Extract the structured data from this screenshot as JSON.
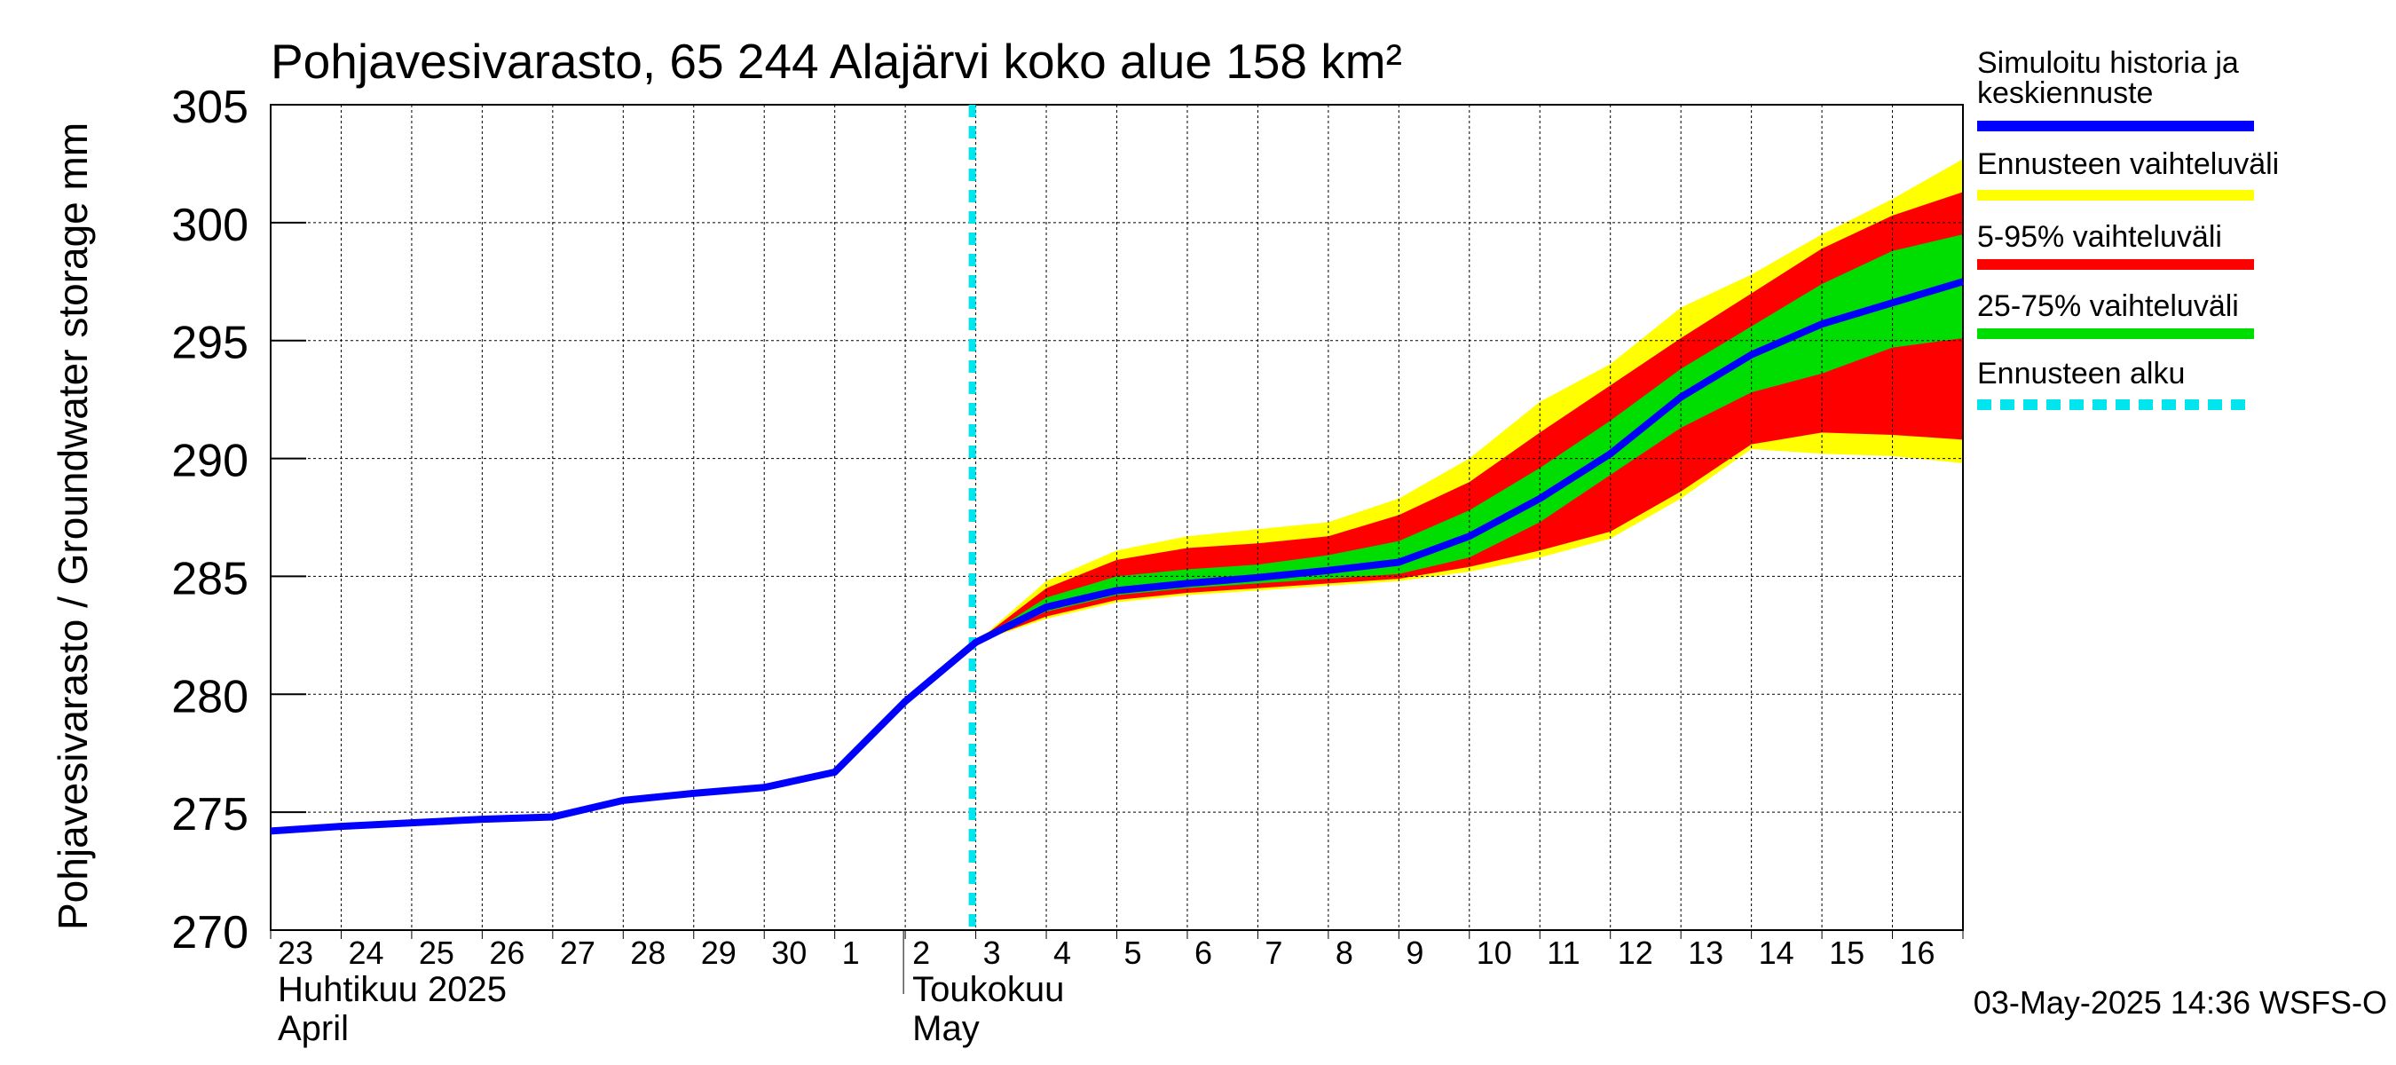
{
  "chart_data": {
    "type": "area",
    "title": "Pohjavesivarasto, 65 244 Alajärvi koko alue 158 km²",
    "ylabel": "Pohjavesivarasto / Groundwater storage   mm",
    "ylim": [
      270,
      305
    ],
    "yticks": [
      270,
      275,
      280,
      285,
      290,
      295,
      300,
      305
    ],
    "grid": true,
    "legend_placement": "right",
    "x_day_labels": [
      "23",
      "24",
      "25",
      "26",
      "27",
      "28",
      "29",
      "30",
      "1",
      "2",
      "3",
      "4",
      "5",
      "6",
      "7",
      "8",
      "9",
      "10",
      "11",
      "12",
      "13",
      "14",
      "15",
      "16"
    ],
    "month_labels": [
      {
        "line1": "Huhtikuu  2025",
        "line2": "April",
        "day_index": 0
      },
      {
        "line1": "Toukokuu",
        "line2": "May",
        "day_index": 9
      }
    ],
    "forecast_start_day_index": 10,
    "series": [
      {
        "name": "Simuloitu historia ja keskiennuste",
        "color": "#0000ff",
        "x": [
          0,
          1,
          2,
          3,
          4,
          5,
          6,
          7,
          8,
          9,
          10,
          11,
          12,
          13,
          14,
          15,
          16,
          17,
          18,
          19,
          20,
          21,
          22,
          23,
          24
        ],
        "values": [
          274.2,
          274.4,
          274.55,
          274.7,
          274.8,
          275.5,
          275.8,
          276.05,
          276.7,
          279.7,
          282.2,
          283.7,
          284.4,
          284.7,
          284.95,
          285.25,
          285.6,
          286.7,
          288.3,
          290.2,
          292.6,
          294.4,
          295.7,
          296.6,
          297.5
        ]
      },
      {
        "name": "Ennusteen vaihteluväli",
        "color": "#ffff00",
        "x": [
          10,
          11,
          12,
          13,
          14,
          15,
          16,
          17,
          18,
          19,
          20,
          21,
          22,
          23,
          24
        ],
        "upper": [
          282.2,
          284.8,
          286.1,
          286.7,
          287.0,
          287.3,
          288.3,
          290.0,
          292.4,
          294.0,
          296.4,
          297.8,
          299.5,
          301.0,
          302.7
        ],
        "lower": [
          282.2,
          283.2,
          283.9,
          284.2,
          284.4,
          284.6,
          284.8,
          285.2,
          285.8,
          286.6,
          288.3,
          290.4,
          290.2,
          290.1,
          289.8
        ]
      },
      {
        "name": "5-95% vaihteluväli",
        "color": "#ff0000",
        "x": [
          10,
          11,
          12,
          13,
          14,
          15,
          16,
          17,
          18,
          19,
          20,
          21,
          22,
          23,
          24
        ],
        "upper": [
          282.2,
          284.5,
          285.7,
          286.2,
          286.4,
          286.7,
          287.6,
          289.0,
          291.1,
          293.1,
          295.1,
          297.0,
          298.9,
          300.3,
          301.3
        ],
        "lower": [
          282.2,
          283.3,
          284.0,
          284.3,
          284.5,
          284.7,
          284.9,
          285.4,
          286.1,
          286.9,
          288.6,
          290.6,
          291.1,
          291.0,
          290.8
        ]
      },
      {
        "name": "25-75% vaihteluväli",
        "color": "#00dd00",
        "x": [
          10,
          11,
          12,
          13,
          14,
          15,
          16,
          17,
          18,
          19,
          20,
          21,
          22,
          23,
          24
        ],
        "upper": [
          282.2,
          284.1,
          285.0,
          285.3,
          285.5,
          285.9,
          286.5,
          287.8,
          289.6,
          291.6,
          293.8,
          295.6,
          297.4,
          298.8,
          299.5
        ],
        "lower": [
          282.2,
          283.5,
          284.2,
          284.5,
          284.7,
          284.9,
          285.1,
          285.8,
          287.3,
          289.3,
          291.3,
          292.8,
          293.6,
          294.7,
          295.1
        ]
      }
    ],
    "forecast_line": {
      "name": "Ennusteen alku",
      "color": "#00e5ee"
    }
  },
  "legend": {
    "items": [
      {
        "line1": "Simuloitu historia ja",
        "line2": "keskiennuste",
        "color": "#0000ff",
        "style": "solid"
      },
      {
        "line1": "Ennusteen vaihteluväli",
        "line2": "",
        "color": "#ffff00",
        "style": "solid"
      },
      {
        "line1": "5-95% vaihteluväli",
        "line2": "",
        "color": "#ff0000",
        "style": "solid"
      },
      {
        "line1": "25-75% vaihteluväli",
        "line2": "",
        "color": "#00dd00",
        "style": "solid"
      },
      {
        "line1": "Ennusteen alku",
        "line2": "",
        "color": "#00e5ee",
        "style": "dashed"
      }
    ]
  },
  "footer": {
    "timestamp": "03-May-2025 14:36 WSFS-O"
  }
}
